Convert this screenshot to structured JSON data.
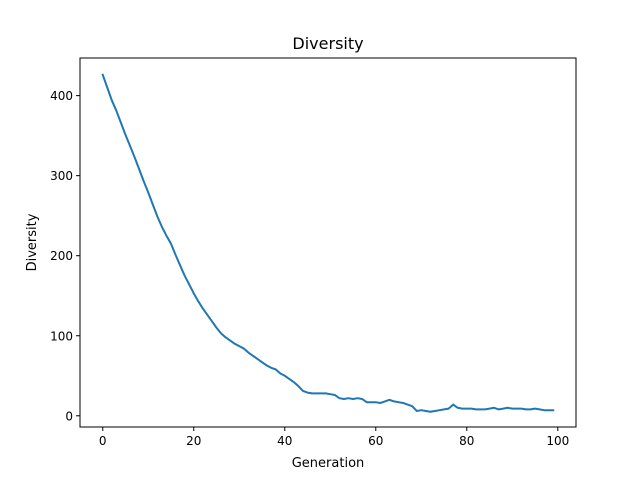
{
  "chart_data": {
    "type": "line",
    "title": "Diversity",
    "xlabel": "Generation",
    "ylabel": "Diversity",
    "xlim": [
      -5,
      104
    ],
    "ylim": [
      -14,
      447
    ],
    "xticks": [
      0,
      20,
      40,
      60,
      80,
      100
    ],
    "yticks": [
      0,
      100,
      200,
      300,
      400
    ],
    "grid": false,
    "series": [
      {
        "color": "#1f77b4",
        "x": [
          0,
          1,
          2,
          3,
          4,
          5,
          6,
          7,
          8,
          9,
          10,
          11,
          12,
          13,
          14,
          15,
          16,
          17,
          18,
          19,
          20,
          21,
          22,
          23,
          24,
          25,
          26,
          27,
          28,
          29,
          30,
          31,
          32,
          33,
          34,
          35,
          36,
          37,
          38,
          39,
          40,
          41,
          42,
          43,
          44,
          45,
          46,
          47,
          48,
          49,
          50,
          51,
          52,
          53,
          54,
          55,
          56,
          57,
          58,
          59,
          60,
          61,
          62,
          63,
          64,
          65,
          66,
          67,
          68,
          69,
          70,
          71,
          72,
          73,
          74,
          75,
          76,
          77,
          78,
          79,
          80,
          81,
          82,
          83,
          84,
          85,
          86,
          87,
          88,
          89,
          90,
          91,
          92,
          93,
          94,
          95,
          96,
          97,
          98,
          99
        ],
        "y": [
          426,
          410,
          394,
          381,
          366,
          351,
          337,
          323,
          308,
          293,
          279,
          264,
          249,
          236,
          225,
          215,
          201,
          188,
          175,
          164,
          153,
          143,
          134,
          126,
          118,
          110,
          103,
          98,
          94,
          90,
          87,
          84,
          79,
          75,
          71,
          67,
          63,
          60,
          58,
          53,
          50,
          46,
          42,
          37,
          31,
          29,
          28,
          28,
          28,
          28,
          27,
          26,
          22,
          21,
          22,
          21,
          22,
          21,
          17,
          17,
          17,
          16,
          18,
          20,
          18,
          17,
          16,
          14,
          12,
          6,
          7,
          6,
          5,
          6,
          7,
          8,
          9,
          14,
          10,
          9,
          9,
          9,
          8,
          8,
          8,
          9,
          10,
          8,
          9,
          10,
          9,
          9,
          9,
          8,
          8,
          9,
          8,
          7,
          7,
          7
        ]
      }
    ]
  }
}
